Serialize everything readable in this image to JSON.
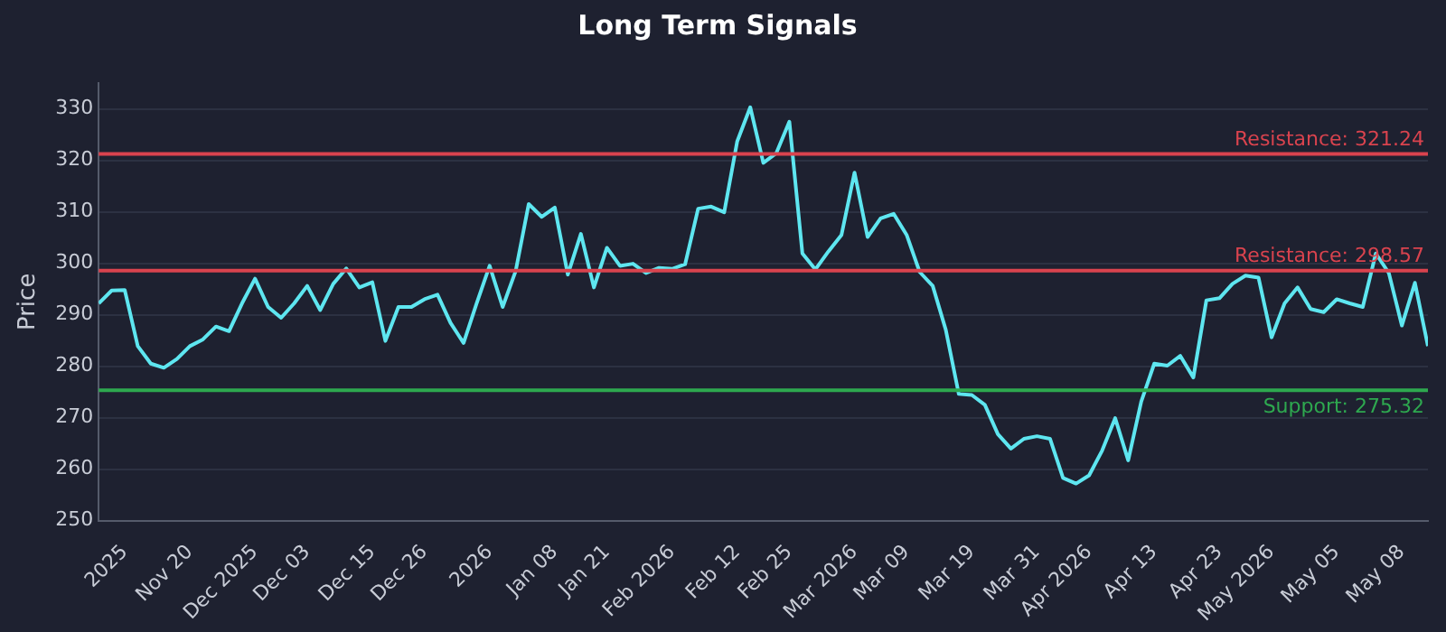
{
  "chart_data": {
    "type": "line",
    "title": "Long Term Signals",
    "ylabel": "Price",
    "categories": [
      null,
      null,
      "2025",
      null,
      null,
      null,
      null,
      "Nov 20",
      null,
      null,
      null,
      null,
      "Dec 2025",
      null,
      null,
      null,
      "Dec 03",
      null,
      null,
      null,
      null,
      "Dec 15",
      null,
      null,
      null,
      "Dec 26",
      null,
      null,
      null,
      null,
      "2026",
      null,
      null,
      null,
      null,
      "Jan 08",
      null,
      null,
      null,
      "Jan 21",
      null,
      null,
      null,
      null,
      "Feb 2026",
      null,
      null,
      null,
      null,
      "Feb 12",
      null,
      null,
      null,
      "Feb 25",
      null,
      null,
      null,
      null,
      "Mar 2026",
      null,
      null,
      null,
      "Mar 09",
      null,
      null,
      null,
      null,
      "Mar 19",
      null,
      null,
      null,
      null,
      "Mar 31",
      null,
      null,
      null,
      "Apr 2026",
      null,
      null,
      null,
      null,
      "Apr 13",
      null,
      null,
      null,
      null,
      "Apr 23",
      null,
      null,
      null,
      "May 2026",
      null,
      null,
      null,
      null,
      "May 05",
      null,
      null,
      null,
      null,
      "May 08",
      null,
      null
    ],
    "series": [
      {
        "color": "#5ee6f0",
        "values": [
          292.2,
          294.7,
          294.8,
          283.9,
          280.5,
          279.7,
          281.4,
          283.9,
          285.2,
          287.7,
          286.8,
          292.2,
          297,
          291.5,
          289.4,
          292.2,
          295.6,
          290.9,
          296,
          299,
          295.3,
          296.3,
          284.9,
          291.5,
          291.5,
          293,
          293.9,
          288.4,
          284.5,
          292.2,
          299.5,
          291.5,
          298.5,
          311.5,
          309,
          310.8,
          297.8,
          305.7,
          295.3,
          303,
          299.5,
          299.9,
          298.1,
          299.1,
          298.9,
          299.8,
          310.6,
          311,
          309.9,
          323.7,
          330.3,
          319.5,
          321.4,
          327.5,
          301.9,
          298.8,
          302.3,
          305.5,
          317.6,
          305.1,
          308.7,
          309.6,
          305.5,
          298.3,
          295.6,
          287.1,
          274.6,
          274.4,
          272.5,
          266.8,
          264,
          265.9,
          266.4,
          265.9,
          258.3,
          257.2,
          258.8,
          263.6,
          269.9,
          261.7,
          273.1,
          280.5,
          280.1,
          282,
          277.8,
          292.8,
          293.2,
          296,
          297.6,
          297.2,
          285.6,
          292.2,
          295.3,
          291.1,
          290.5,
          293,
          292.2,
          291.5,
          301.9,
          298.1,
          287.9,
          296.2,
          283.9
        ]
      }
    ],
    "ylim": [
      250,
      335
    ],
    "yticks": [
      250,
      260,
      270,
      280,
      290,
      300,
      310,
      320,
      330
    ],
    "grid": "y",
    "ref_lines": [
      {
        "axis": "y",
        "value": 321.24,
        "label": "Resistance: 321.24",
        "color": "#d9434e"
      },
      {
        "axis": "y",
        "value": 298.57,
        "label": "Resistance: 298.57",
        "color": "#d9434e"
      },
      {
        "axis": "y",
        "value": 275.32,
        "label": "Support: 275.32",
        "color": "#2ea84f"
      }
    ]
  }
}
